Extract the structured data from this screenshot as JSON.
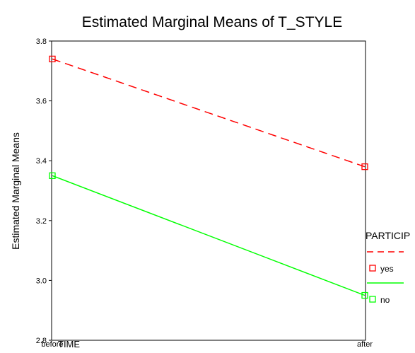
{
  "chart_data": {
    "type": "line",
    "title": "Estimated Marginal Means of T_STYLE",
    "xlabel": "TIME",
    "ylabel": "Estimated Marginal Means",
    "categories": [
      "before",
      "after"
    ],
    "ylim": [
      2.8,
      3.8
    ],
    "yticks": [
      "2.8",
      "3.0",
      "3.2",
      "3.4",
      "3.6",
      "3.8"
    ],
    "grid": false,
    "legend": {
      "title": "PARTICIP",
      "placement": "right"
    },
    "series": [
      {
        "name": "yes",
        "values": [
          3.74,
          3.38
        ],
        "color": "#ff0000",
        "dash": "dashed",
        "marker": "square"
      },
      {
        "name": "no",
        "values": [
          3.35,
          2.95
        ],
        "color": "#00ff00",
        "dash": "solid",
        "marker": "square"
      }
    ]
  }
}
